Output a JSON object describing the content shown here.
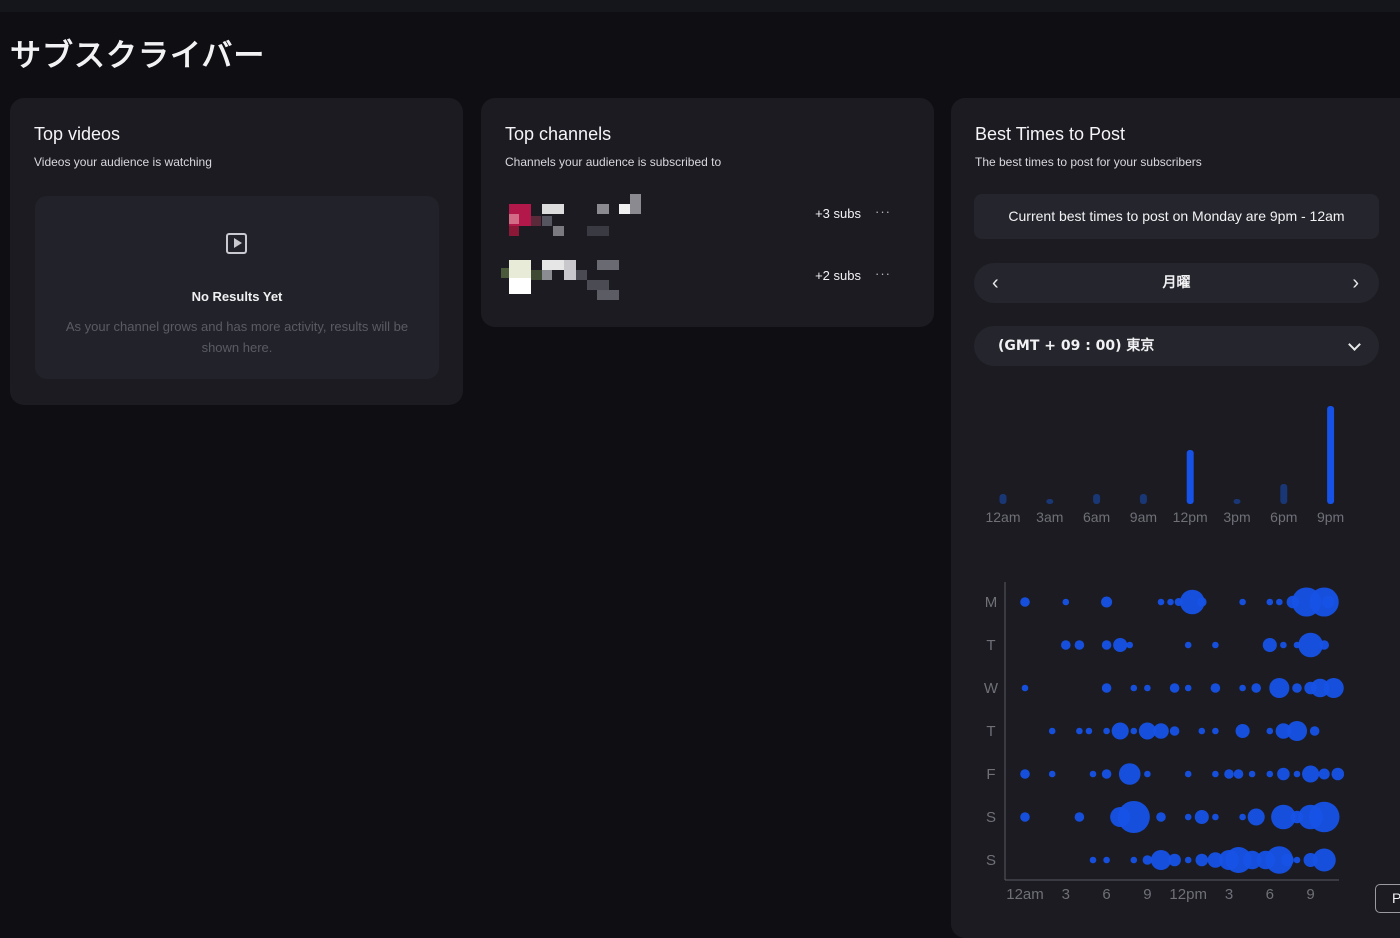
{
  "page_title": "サブスクライバー",
  "top_videos": {
    "title": "Top videos",
    "subtitle": "Videos your audience is watching",
    "empty_icon": "play-box-icon",
    "empty_title": "No Results Yet",
    "empty_text": "As your channel grows and has more activity, results will be shown here."
  },
  "top_channels": {
    "title": "Top channels",
    "subtitle": "Channels your audience is subscribed to",
    "channels": [
      {
        "subs": "+3 subs",
        "more": "···",
        "avatar": "pixelated-thumbnail"
      },
      {
        "subs": "+2 subs",
        "more": "···",
        "avatar": "pixelated-thumbnail"
      }
    ]
  },
  "best_times": {
    "title": "Best Times to Post",
    "subtitle": "The best times to post for your subscribers",
    "banner": "Current best times to post on Monday are 9pm - 12am",
    "day": "月曜",
    "prev_icon": "‹",
    "next_icon": "›",
    "timezone": "(GMT + 09 : 00) 東京"
  },
  "colors": {
    "background": "#0f0f13",
    "card": "#1b1b21",
    "accent": "#1652e6",
    "accent_dim": "#1a3775"
  },
  "chart_data": [
    {
      "type": "bar",
      "categories": [
        "12am",
        "3am",
        "6am",
        "9am",
        "12pm",
        "3pm",
        "6pm",
        "9pm"
      ],
      "values": [
        10,
        5,
        10,
        10,
        54,
        5,
        20,
        98
      ],
      "highlight": [
        false,
        false,
        false,
        false,
        true,
        false,
        false,
        true
      ],
      "ylim": [
        0,
        100
      ]
    },
    {
      "type": "scatter",
      "x_ticks": [
        "12am",
        "3",
        "6",
        "9",
        "12pm",
        "3",
        "6",
        "9"
      ],
      "tick_hours": [
        1,
        4,
        7,
        10,
        13,
        16,
        19,
        22
      ],
      "rows": [
        "M",
        "T",
        "W",
        "T",
        "F",
        "S",
        "S"
      ],
      "xlim": [
        0,
        24
      ],
      "size_scale": "relative activity (0-1)",
      "points": [
        [
          [
            1,
            0.2
          ],
          [
            4,
            0.1
          ],
          [
            7,
            0.25
          ],
          [
            11,
            0.1
          ],
          [
            11.7,
            0.1
          ],
          [
            12.3,
            0.15
          ],
          [
            13.3,
            0.7
          ],
          [
            14,
            0.2
          ],
          [
            17,
            0.1
          ],
          [
            19,
            0.1
          ],
          [
            19.7,
            0.1
          ],
          [
            20.7,
            0.3
          ],
          [
            21.7,
            0.85
          ],
          [
            23,
            0.85
          ],
          [
            23.3,
            0.3
          ]
        ],
        [
          [
            4,
            0.2
          ],
          [
            5,
            0.2
          ],
          [
            7,
            0.2
          ],
          [
            8,
            0.35
          ],
          [
            8.7,
            0.1
          ],
          [
            13,
            0.1
          ],
          [
            15,
            0.1
          ],
          [
            19,
            0.35
          ],
          [
            20,
            0.1
          ],
          [
            21,
            0.1
          ],
          [
            22,
            0.7
          ],
          [
            23,
            0.2
          ]
        ],
        [
          [
            1,
            0.1
          ],
          [
            7,
            0.2
          ],
          [
            9,
            0.1
          ],
          [
            10,
            0.1
          ],
          [
            12,
            0.2
          ],
          [
            13,
            0.1
          ],
          [
            15,
            0.2
          ],
          [
            17,
            0.1
          ],
          [
            18,
            0.2
          ],
          [
            19.7,
            0.55
          ],
          [
            21,
            0.2
          ],
          [
            22,
            0.3
          ],
          [
            22.7,
            0.5
          ],
          [
            23.7,
            0.55
          ]
        ],
        [
          [
            3,
            0.1
          ],
          [
            5,
            0.1
          ],
          [
            5.7,
            0.1
          ],
          [
            7,
            0.1
          ],
          [
            8,
            0.45
          ],
          [
            9,
            0.1
          ],
          [
            10,
            0.45
          ],
          [
            11,
            0.4
          ],
          [
            12,
            0.2
          ],
          [
            14,
            0.1
          ],
          [
            15,
            0.1
          ],
          [
            17,
            0.35
          ],
          [
            19,
            0.1
          ],
          [
            20,
            0.4
          ],
          [
            21,
            0.55
          ],
          [
            22.3,
            0.2
          ]
        ],
        [
          [
            1,
            0.2
          ],
          [
            3,
            0.1
          ],
          [
            6,
            0.1
          ],
          [
            7,
            0.2
          ],
          [
            8.7,
            0.6
          ],
          [
            10,
            0.1
          ],
          [
            13,
            0.1
          ],
          [
            15,
            0.1
          ],
          [
            16,
            0.2
          ],
          [
            16.7,
            0.2
          ],
          [
            17.7,
            0.1
          ],
          [
            19,
            0.1
          ],
          [
            20,
            0.3
          ],
          [
            21,
            0.1
          ],
          [
            22,
            0.45
          ],
          [
            23,
            0.25
          ],
          [
            24,
            0.3
          ]
        ],
        [
          [
            1,
            0.2
          ],
          [
            5,
            0.2
          ],
          [
            8,
            0.55
          ],
          [
            9,
            0.95
          ],
          [
            11,
            0.2
          ],
          [
            13,
            0.1
          ],
          [
            14,
            0.35
          ],
          [
            15,
            0.1
          ],
          [
            17,
            0.1
          ],
          [
            18,
            0.45
          ],
          [
            20,
            0.7
          ],
          [
            21,
            0.3
          ],
          [
            22,
            0.7
          ],
          [
            23,
            0.9
          ]
        ],
        [
          [
            6,
            0.1
          ],
          [
            7,
            0.1
          ],
          [
            9,
            0.1
          ],
          [
            10,
            0.2
          ],
          [
            11,
            0.55
          ],
          [
            12,
            0.3
          ],
          [
            13,
            0.1
          ],
          [
            14,
            0.3
          ],
          [
            15,
            0.4
          ],
          [
            16,
            0.55
          ],
          [
            16.7,
            0.75
          ],
          [
            17.7,
            0.5
          ],
          [
            18.7,
            0.5
          ],
          [
            19.7,
            0.8
          ],
          [
            20.3,
            0.3
          ],
          [
            21,
            0.1
          ],
          [
            22,
            0.35
          ],
          [
            23,
            0.65
          ]
        ]
      ]
    }
  ],
  "pi_button": "Pi"
}
